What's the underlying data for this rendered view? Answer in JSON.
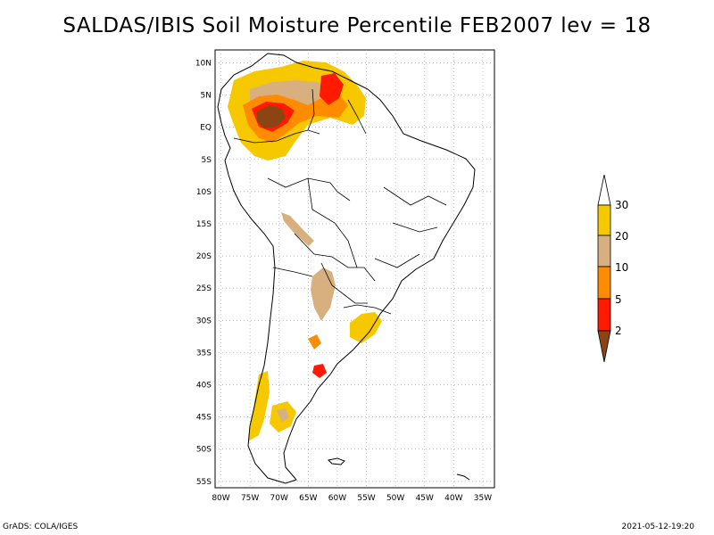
{
  "title": "SALDAS/IBIS Soil Moisture Percentile FEB2007 lev = 18",
  "map": {
    "region": "South America",
    "lat_range": [
      -56,
      12
    ],
    "lon_range": [
      -81,
      -33
    ],
    "lat_ticks": [
      "10N",
      "5N",
      "EQ",
      "5S",
      "10S",
      "15S",
      "20S",
      "25S",
      "30S",
      "35S",
      "40S",
      "45S",
      "50S",
      "55S"
    ],
    "lat_values": [
      10,
      5,
      0,
      -5,
      -10,
      -15,
      -20,
      -25,
      -30,
      -35,
      -40,
      -45,
      -50,
      -55
    ],
    "lon_ticks": [
      "80W",
      "75W",
      "70W",
      "65W",
      "60W",
      "55W",
      "50W",
      "45W",
      "40W",
      "35W"
    ],
    "lon_values": [
      -80,
      -75,
      -70,
      -65,
      -60,
      -55,
      -50,
      -45,
      -40,
      -35
    ]
  },
  "legend": {
    "labels": [
      "30",
      "20",
      "10",
      "5",
      "2"
    ],
    "colors": {
      "above30": "#ffffff",
      "c20_30": "#f5c800",
      "c10_20": "#d8b080",
      "c5_10": "#ff8c00",
      "c2_5": "#ff1a00",
      "below2": "#8b4513"
    }
  },
  "footer": {
    "left": "GrADS: COLA/IGES",
    "right": "2021-05-12-19:20"
  }
}
